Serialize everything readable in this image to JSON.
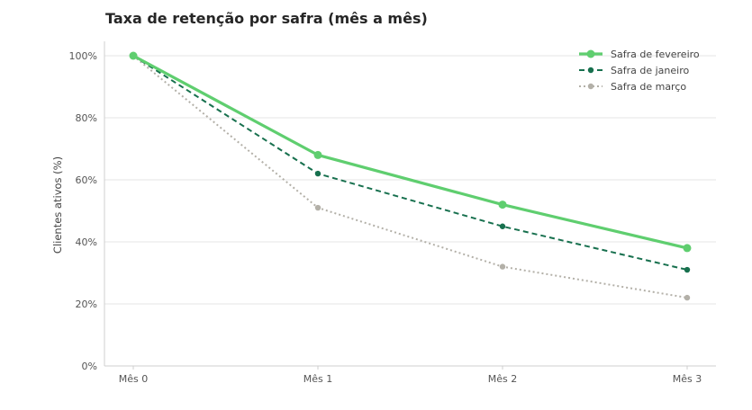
{
  "chart_data": {
    "type": "line",
    "title": "Taxa de retenção por safra (mês a mês)",
    "xlabel": "",
    "ylabel": "Clientes ativos (%)",
    "categories": [
      "Mês 0",
      "Mês 1",
      "Mês 2",
      "Mês 3"
    ],
    "ylim": [
      0,
      100
    ],
    "yticks": [
      "0%",
      "20%",
      "40%",
      "60%",
      "80%",
      "100%"
    ],
    "ytick_values": [
      0,
      20,
      40,
      60,
      80,
      100
    ],
    "grid": "horizontal",
    "legend_position": "top-right",
    "series": [
      {
        "name": "Safra de fevereiro",
        "values": [
          100,
          68,
          52,
          38
        ],
        "color": "#5fce6f",
        "style": "solid"
      },
      {
        "name": "Safra de janeiro",
        "values": [
          100,
          62,
          45,
          31
        ],
        "color": "#17704e",
        "style": "dashed"
      },
      {
        "name": "Safra de março",
        "values": [
          100,
          51,
          32,
          22
        ],
        "color": "#b3b0a8",
        "style": "dotted"
      }
    ]
  }
}
